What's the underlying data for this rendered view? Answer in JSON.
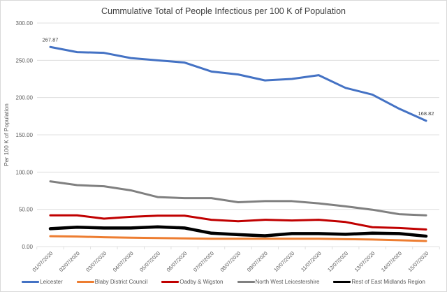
{
  "chart_data": {
    "type": "line",
    "title": "Cummulative Total of People Infectious per 100 K of Population",
    "xlabel": "",
    "ylabel": "Per 100 K of Population",
    "ylim": [
      0,
      300
    ],
    "y_ticks": [
      "0.00",
      "50.00",
      "100.00",
      "150.00",
      "200.00",
      "250.00",
      "300.00"
    ],
    "y_tick_values": [
      0,
      50,
      100,
      150,
      200,
      250,
      300
    ],
    "grid": true,
    "legend_position": "bottom",
    "categories": [
      "01/07/2020",
      "02/07/2020",
      "03/07/2020",
      "04/07/2020",
      "05/07/2020",
      "06/07/2020",
      "07/07/2020",
      "08/07/2020",
      "09/07/2020",
      "10/07/2020",
      "11/07/2020",
      "12/07/2020",
      "13/07/2020",
      "14/07/2020",
      "15/07/2020"
    ],
    "series": [
      {
        "name": "Leicester",
        "color": "#4472c4",
        "width": 3,
        "values": [
          267.87,
          261,
          260,
          253,
          250,
          247,
          235,
          231,
          223,
          225,
          230,
          213,
          204,
          185,
          168.82
        ]
      },
      {
        "name": "Blaby District Council",
        "color": "#ed7d31",
        "width": 3,
        "values": [
          14,
          13.5,
          12.5,
          12,
          11.5,
          11,
          10.5,
          10.5,
          10.5,
          10.5,
          10.5,
          10,
          9.5,
          8.5,
          7.5
        ]
      },
      {
        "name": "Oadby & Wigston",
        "color": "#c00000",
        "width": 3,
        "values": [
          42,
          42,
          37.5,
          40,
          41.5,
          41.5,
          36,
          34,
          36,
          35,
          36,
          33,
          26,
          25,
          23
        ]
      },
      {
        "name": "North West Leicestershire",
        "color": "#808080",
        "width": 3,
        "values": [
          87.5,
          82.5,
          81,
          75.5,
          66.5,
          65,
          65,
          59.5,
          61,
          61,
          58,
          54,
          49.5,
          43.5,
          42
        ]
      },
      {
        "name": "Rest of East Midlands Region",
        "color": "#000000",
        "width": 4.5,
        "values": [
          24,
          26,
          25,
          25,
          26.5,
          25,
          18,
          16,
          14.5,
          17.5,
          17.5,
          16.5,
          18,
          17.5,
          14
        ]
      }
    ],
    "data_labels": [
      {
        "series": "Leicester",
        "index": 0,
        "text": "267.87"
      },
      {
        "series": "Leicester",
        "index": 14,
        "text": "168.82"
      }
    ]
  }
}
